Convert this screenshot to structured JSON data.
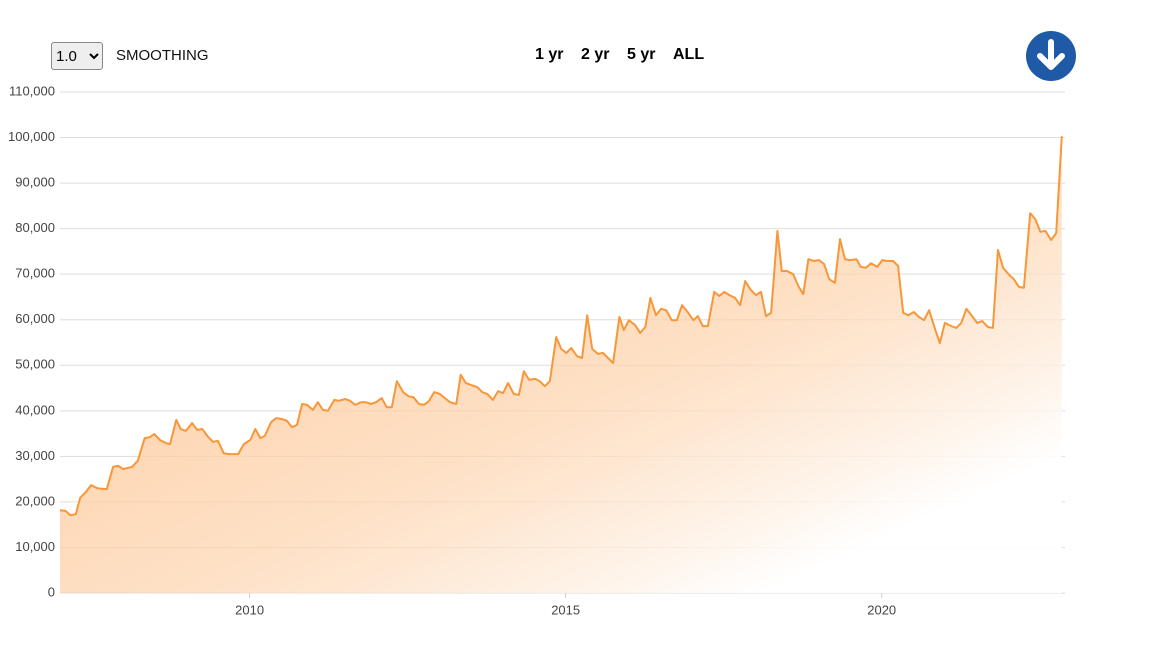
{
  "controls": {
    "smoothing_value": "1.0",
    "smoothing_label": "SMOOTHING",
    "ranges": [
      "1 yr",
      "2 yr",
      "5 yr",
      "ALL"
    ]
  },
  "chart_data": {
    "type": "area",
    "color": "#f7973a",
    "grid": true,
    "xlim": [
      2007,
      2022.9
    ],
    "xticks": [
      2010,
      2015,
      2020
    ],
    "ylim": [
      0,
      110000
    ],
    "yticks": [
      0,
      {
        "value": 10000,
        "label": "10,000"
      },
      {
        "value": 20000,
        "label": "20,000"
      },
      {
        "value": 30000,
        "label": "30,000"
      },
      {
        "value": 40000,
        "label": "40,000"
      },
      {
        "value": 50000,
        "label": "50,000"
      },
      {
        "value": 60000,
        "label": "60,000"
      },
      {
        "value": 70000,
        "label": "70,000"
      },
      {
        "value": 80000,
        "label": "80,000"
      },
      {
        "value": 90000,
        "label": "90,000"
      },
      {
        "value": 100000,
        "label": "100,000"
      },
      {
        "value": 110000,
        "label": "110,000"
      }
    ],
    "x": [
      2007.0,
      2007.09,
      2007.16,
      2007.25,
      2007.32,
      2007.41,
      2007.49,
      2007.59,
      2007.74,
      2007.84,
      2007.92,
      2008.0,
      2008.14,
      2008.23,
      2008.34,
      2008.42,
      2008.49,
      2008.58,
      2008.68,
      2008.74,
      2008.84,
      2008.91,
      2008.99,
      2009.09,
      2009.17,
      2009.25,
      2009.33,
      2009.42,
      2009.5,
      2009.59,
      2009.67,
      2009.82,
      2009.91,
      2010.01,
      2010.09,
      2010.17,
      2010.24,
      2010.34,
      2010.42,
      2010.51,
      2010.59,
      2010.67,
      2010.75,
      2010.83,
      2010.91,
      2011.0,
      2011.08,
      2011.16,
      2011.24,
      2011.34,
      2011.41,
      2011.51,
      2011.59,
      2011.67,
      2011.76,
      2011.84,
      2011.92,
      2012.0,
      2012.09,
      2012.17,
      2012.25,
      2012.33,
      2012.43,
      2012.51,
      2012.59,
      2012.68,
      2012.76,
      2012.84,
      2012.92,
      2013.01,
      2013.09,
      2013.17,
      2013.27,
      2013.34,
      2013.42,
      2013.5,
      2013.6,
      2013.68,
      2013.76,
      2013.85,
      2013.93,
      2014.01,
      2014.09,
      2014.18,
      2014.26,
      2014.34,
      2014.42,
      2014.52,
      2014.59,
      2014.67,
      2014.75,
      2014.85,
      2014.93,
      2015.01,
      2015.09,
      2015.18,
      2015.26,
      2015.34,
      2015.42,
      2015.51,
      2015.59,
      2015.67,
      2015.75,
      2015.85,
      2015.92,
      2016.0,
      2016.1,
      2016.18,
      2016.26,
      2016.34,
      2016.43,
      2016.51,
      2016.59,
      2016.68,
      2016.76,
      2016.84,
      2016.92,
      2017.02,
      2017.09,
      2017.17,
      2017.25,
      2017.35,
      2017.43,
      2017.51,
      2017.59,
      2017.68,
      2017.76,
      2017.84,
      2017.92,
      2018.01,
      2018.09,
      2018.17,
      2018.25,
      2018.35,
      2018.42,
      2018.5,
      2018.6,
      2018.68,
      2018.76,
      2018.84,
      2018.93,
      2019.01,
      2019.09,
      2019.17,
      2019.26,
      2019.34,
      2019.42,
      2019.5,
      2019.6,
      2019.67,
      2019.75,
      2019.83,
      2019.93,
      2020.01,
      2020.09,
      2020.18,
      2020.26,
      2020.34,
      2020.42,
      2020.51,
      2020.59,
      2020.67,
      2020.75,
      2020.85,
      2020.92,
      2021.0,
      2021.1,
      2021.18,
      2021.26,
      2021.34,
      2021.43,
      2021.51,
      2021.59,
      2021.68,
      2021.76,
      2021.84,
      2021.92,
      2022.02,
      2022.09,
      2022.17,
      2022.25,
      2022.35,
      2022.43,
      2022.51,
      2022.59,
      2022.68,
      2022.76,
      2022.85
    ],
    "values": [
      18200,
      18000,
      17100,
      17300,
      20900,
      22200,
      23700,
      23000,
      22800,
      27700,
      27900,
      27200,
      27700,
      29000,
      34000,
      34200,
      34900,
      33600,
      32900,
      32700,
      38000,
      36000,
      35600,
      37300,
      35800,
      36000,
      34500,
      33200,
      33400,
      30700,
      30500,
      30500,
      32700,
      33600,
      36000,
      34000,
      34500,
      37500,
      38400,
      38200,
      37800,
      36400,
      36900,
      41500,
      41300,
      40200,
      41900,
      40200,
      40000,
      42400,
      42200,
      42600,
      42200,
      41300,
      41900,
      41900,
      41500,
      41900,
      42800,
      40800,
      40800,
      46500,
      44100,
      43200,
      43000,
      41500,
      41300,
      42200,
      44100,
      43700,
      42800,
      41900,
      41500,
      47900,
      46100,
      45700,
      45200,
      44100,
      43700,
      42400,
      44300,
      43900,
      46100,
      43700,
      43500,
      48700,
      46800,
      47000,
      46500,
      45400,
      46500,
      56200,
      53600,
      52700,
      53800,
      52000,
      51600,
      61000,
      53600,
      52500,
      52700,
      51600,
      50500,
      60600,
      57700,
      59900,
      58800,
      57100,
      58400,
      64800,
      61000,
      62400,
      62100,
      59900,
      59900,
      63200,
      61900,
      59900,
      60800,
      58600,
      58600,
      66100,
      65200,
      66100,
      65400,
      64800,
      63200,
      68500,
      66700,
      65400,
      66100,
      60800,
      61500,
      79500,
      70700,
      70700,
      70000,
      67400,
      65600,
      73300,
      72900,
      73100,
      72200,
      68900,
      68100,
      77700,
      73300,
      73100,
      73300,
      71600,
      71400,
      72400,
      71600,
      73100,
      72900,
      72900,
      71800,
      61500,
      61000,
      61700,
      60600,
      59900,
      62100,
      57700,
      54900,
      59300,
      58600,
      58200,
      59300,
      62400,
      60800,
      59300,
      59700,
      58400,
      58200,
      75300,
      71400,
      69800,
      68900,
      67200,
      67000,
      83400,
      82100,
      79300,
      79500,
      77500,
      79000,
      100300
    ]
  }
}
